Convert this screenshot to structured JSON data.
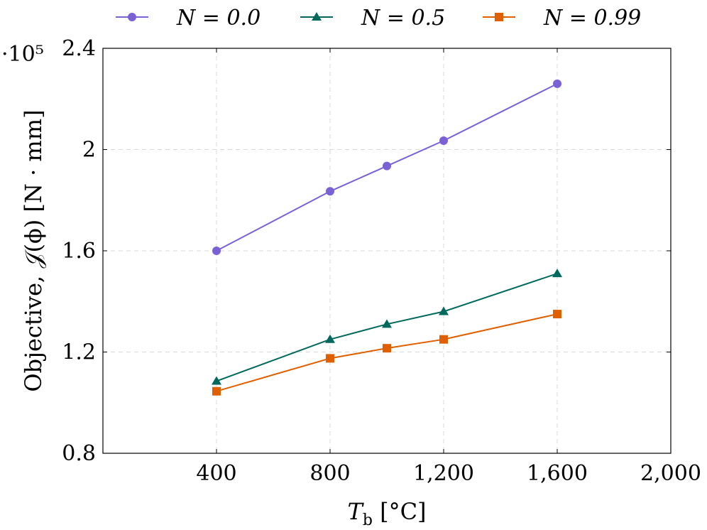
{
  "chart_data": {
    "type": "line",
    "title": "",
    "xlabel": "T_b [°C]",
    "xlabel_main": "T",
    "xlabel_sub": "b",
    "xlabel_unit": " [°C]",
    "ylabel": "Objective, 𝒥(ϕ) [N · mm]",
    "y_multiplier": "·10⁵",
    "xlim": [
      0,
      2000
    ],
    "ylim": [
      0.8,
      2.4
    ],
    "x_ticks": [
      400,
      800,
      1200,
      1600,
      2000
    ],
    "x_tick_labels": [
      "400",
      "800",
      "1,200",
      "1,600",
      "2,000"
    ],
    "y_ticks": [
      0.8,
      1.2,
      1.6,
      2.0,
      2.4
    ],
    "y_tick_labels": [
      "0.8",
      "1.2",
      "1.6",
      "2",
      "2.4"
    ],
    "grid": true,
    "legend_position": "top-outside",
    "x": [
      400,
      800,
      1000,
      1200,
      1600
    ],
    "series": [
      {
        "name": "N = 0.0",
        "values": [
          1.6,
          1.835,
          1.935,
          2.035,
          2.26
        ],
        "color": "#7b61d6",
        "marker": "circle"
      },
      {
        "name": "N = 0.5",
        "values": [
          1.085,
          1.25,
          1.31,
          1.36,
          1.51
        ],
        "color": "#00695c",
        "marker": "triangle"
      },
      {
        "name": "N = 0.99",
        "values": [
          1.045,
          1.175,
          1.215,
          1.25,
          1.35
        ],
        "color": "#e06000",
        "marker": "square"
      }
    ]
  }
}
